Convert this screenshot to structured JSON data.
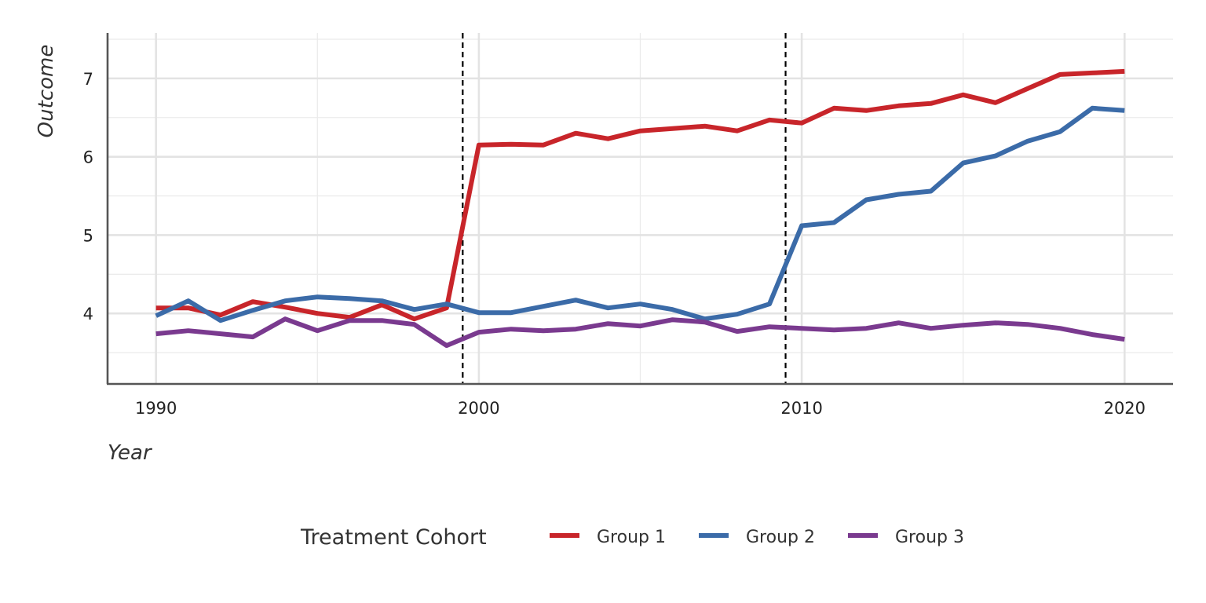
{
  "chart_data": {
    "type": "line",
    "title": "",
    "xlabel": "Year",
    "ylabel": "Outcome",
    "xlim": [
      1988.5,
      2021.5
    ],
    "ylim": [
      3.1,
      7.58
    ],
    "x_ticks": [
      1990,
      2000,
      2010,
      2020
    ],
    "y_ticks": [
      4,
      5,
      6,
      7
    ],
    "grid": true,
    "legend": {
      "title": "Treatment Cohort",
      "position": "bottom"
    },
    "vlines": [
      1999.5,
      2009.5
    ],
    "x": [
      1990,
      1991,
      1992,
      1993,
      1994,
      1995,
      1996,
      1997,
      1998,
      1999,
      2000,
      2001,
      2002,
      2003,
      2004,
      2005,
      2006,
      2007,
      2008,
      2009,
      2010,
      2011,
      2012,
      2013,
      2014,
      2015,
      2016,
      2017,
      2018,
      2019,
      2020
    ],
    "series": [
      {
        "name": "Group 1",
        "color": "#C8252A",
        "values": [
          4.07,
          4.07,
          3.98,
          4.15,
          4.08,
          4.0,
          3.95,
          4.11,
          3.93,
          4.07,
          6.15,
          6.16,
          6.15,
          6.3,
          6.23,
          6.33,
          6.36,
          6.39,
          6.33,
          6.47,
          6.43,
          6.62,
          6.59,
          6.65,
          6.68,
          6.79,
          6.69,
          6.87,
          7.05,
          7.07,
          7.09
        ]
      },
      {
        "name": "Group 2",
        "color": "#3B6BA8",
        "values": [
          3.97,
          4.16,
          3.91,
          4.04,
          4.16,
          4.21,
          4.19,
          4.16,
          4.05,
          4.12,
          4.01,
          4.01,
          4.09,
          4.17,
          4.07,
          4.12,
          4.05,
          3.93,
          3.99,
          4.12,
          5.12,
          5.16,
          5.45,
          5.52,
          5.56,
          5.92,
          6.01,
          6.2,
          6.32,
          6.62,
          6.59
        ]
      },
      {
        "name": "Group 3",
        "color": "#7A3A8F",
        "values": [
          3.74,
          3.78,
          3.74,
          3.7,
          3.93,
          3.78,
          3.91,
          3.91,
          3.86,
          3.59,
          3.76,
          3.8,
          3.78,
          3.8,
          3.87,
          3.84,
          3.92,
          3.89,
          3.77,
          3.83,
          3.81,
          3.79,
          3.81,
          3.88,
          3.81,
          3.85,
          3.88,
          3.86,
          3.81,
          3.73,
          3.67
        ]
      }
    ]
  }
}
